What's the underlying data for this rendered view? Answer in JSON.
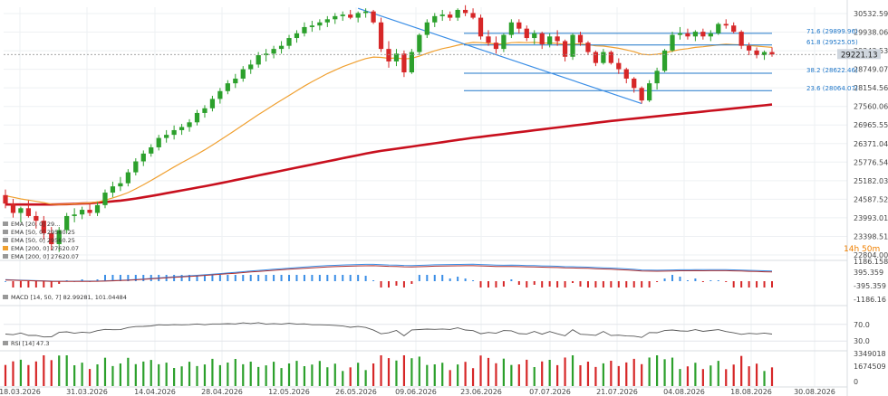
{
  "chart_data": {
    "type": "candlestick",
    "series_bull_color": "#2ca02c",
    "series_bear_color": "#d62728",
    "dates": [
      "18.03.2026",
      "31.03.2026",
      "14.04.2026",
      "28.04.2026",
      "12.05.2026",
      "26.05.2026",
      "09.06.2026",
      "23.06.2026",
      "07.07.2026",
      "21.07.2026",
      "04.08.2026",
      "18.08.2026",
      "30.08.2026"
    ],
    "price_axis": [
      "30532.59",
      "29938.06",
      "29343.53",
      "28749.07",
      "28154.56",
      "27560.06",
      "26965.55",
      "26371.04",
      "25776.54",
      "25182.03",
      "24587.52",
      "23993.01",
      "23398.51",
      "22804.00"
    ],
    "last_price": "29221.13",
    "last_price_value": 29221.13,
    "countdown": "14h 50m",
    "fibonacci": [
      {
        "label": "71.6 (29899.96)",
        "value": 29899.96
      },
      {
        "label": "61.8 (29525.05)",
        "value": 29525.05
      },
      {
        "label": "38.2 (28622.46)",
        "value": 28622.46
      },
      {
        "label": "23.6 (28064.07)",
        "value": 28064.07
      }
    ],
    "legend": [
      {
        "label": "EMA [20, 0] 29...",
        "color": "#888888"
      },
      {
        "label": "EMA [50, 0] 29560.25",
        "color": "#888888"
      },
      {
        "label": "EMA [50, 0] 29560.25",
        "color": "#888888"
      },
      {
        "label": "EMA [200, 0] 27620.07",
        "color": "#f0a030"
      },
      {
        "label": "EMA [200, 0] 27620.07",
        "color": "#888888"
      }
    ],
    "candles": [
      [
        24720,
        24900,
        24300,
        24450
      ],
      [
        24450,
        24600,
        24000,
        24150
      ],
      [
        24150,
        24350,
        23850,
        24300
      ],
      [
        24300,
        24550,
        24000,
        24050
      ],
      [
        24050,
        24200,
        23650,
        23900
      ],
      [
        23900,
        24050,
        23300,
        23500
      ],
      [
        23500,
        23700,
        22950,
        23150
      ],
      [
        23150,
        23700,
        22900,
        23600
      ],
      [
        23600,
        24150,
        23500,
        24050
      ],
      [
        24050,
        24300,
        23850,
        24100
      ],
      [
        24100,
        24350,
        23950,
        24250
      ],
      [
        24250,
        24450,
        24050,
        24150
      ],
      [
        24150,
        24500,
        24050,
        24400
      ],
      [
        24400,
        24900,
        24300,
        24800
      ],
      [
        24800,
        25150,
        24650,
        25000
      ],
      [
        25000,
        25300,
        24850,
        25100
      ],
      [
        25100,
        25550,
        25000,
        25450
      ],
      [
        25450,
        25900,
        25350,
        25800
      ],
      [
        25800,
        26150,
        25650,
        26050
      ],
      [
        26050,
        26350,
        25950,
        26250
      ],
      [
        26250,
        26650,
        26150,
        26550
      ],
      [
        26550,
        26800,
        26400,
        26650
      ],
      [
        26650,
        26950,
        26500,
        26800
      ],
      [
        26800,
        27000,
        26650,
        26900
      ],
      [
        26900,
        27150,
        26750,
        27050
      ],
      [
        27050,
        27450,
        26950,
        27350
      ],
      [
        27350,
        27600,
        27200,
        27500
      ],
      [
        27500,
        27900,
        27400,
        27800
      ],
      [
        27800,
        28150,
        27650,
        28050
      ],
      [
        28050,
        28400,
        27950,
        28300
      ],
      [
        28300,
        28600,
        28150,
        28450
      ],
      [
        28450,
        28850,
        28350,
        28750
      ],
      [
        28750,
        29050,
        28600,
        28900
      ],
      [
        28900,
        29300,
        28800,
        29200
      ],
      [
        29200,
        29400,
        29000,
        29250
      ],
      [
        29250,
        29500,
        29100,
        29400
      ],
      [
        29400,
        29650,
        29250,
        29500
      ],
      [
        29500,
        29850,
        29400,
        29750
      ],
      [
        29750,
        30000,
        29600,
        29900
      ],
      [
        29900,
        30250,
        29800,
        30100
      ],
      [
        30100,
        30300,
        29950,
        30150
      ],
      [
        30150,
        30350,
        30000,
        30250
      ],
      [
        30250,
        30450,
        30100,
        30350
      ],
      [
        30350,
        30550,
        30200,
        30450
      ],
      [
        30450,
        30600,
        30300,
        30500
      ],
      [
        30500,
        30650,
        30350,
        30400
      ],
      [
        30400,
        30600,
        30250,
        30550
      ],
      [
        30550,
        30700,
        30400,
        30600
      ],
      [
        30600,
        30650,
        30200,
        30250
      ],
      [
        30250,
        30400,
        29300,
        29400
      ],
      [
        29400,
        29650,
        28800,
        29000
      ],
      [
        29000,
        29400,
        28850,
        29250
      ],
      [
        29250,
        29350,
        28500,
        28650
      ],
      [
        28650,
        29400,
        28600,
        29300
      ],
      [
        29300,
        29900,
        29200,
        29850
      ],
      [
        29850,
        30350,
        29750,
        30250
      ],
      [
        30250,
        30550,
        30100,
        30450
      ],
      [
        30450,
        30650,
        30300,
        30500
      ],
      [
        30500,
        30600,
        30300,
        30400
      ],
      [
        30400,
        30700,
        30300,
        30650
      ],
      [
        30650,
        30800,
        30450,
        30550
      ],
      [
        30550,
        30700,
        30350,
        30400
      ],
      [
        30400,
        30500,
        29700,
        29800
      ],
      [
        29800,
        30000,
        29500,
        29600
      ],
      [
        29600,
        29800,
        29250,
        29400
      ],
      [
        29400,
        29900,
        29300,
        29850
      ],
      [
        29850,
        30350,
        29750,
        30250
      ],
      [
        30250,
        30350,
        29900,
        30050
      ],
      [
        30050,
        30150,
        29650,
        29750
      ],
      [
        29750,
        30000,
        29550,
        29900
      ],
      [
        29900,
        29950,
        29400,
        29550
      ],
      [
        29550,
        29900,
        29450,
        29800
      ],
      [
        29800,
        30000,
        29500,
        29650
      ],
      [
        29650,
        29700,
        29000,
        29150
      ],
      [
        29150,
        29900,
        29050,
        29850
      ],
      [
        29850,
        29950,
        29500,
        29600
      ],
      [
        29600,
        29650,
        29200,
        29300
      ],
      [
        29300,
        29350,
        28850,
        28950
      ],
      [
        28950,
        29400,
        28900,
        29300
      ],
      [
        29300,
        29350,
        28900,
        28950
      ],
      [
        28950,
        29100,
        28600,
        28750
      ],
      [
        28750,
        28800,
        28300,
        28450
      ],
      [
        28450,
        28500,
        28000,
        28150
      ],
      [
        28150,
        28200,
        27650,
        27750
      ],
      [
        27750,
        28400,
        27700,
        28300
      ],
      [
        28300,
        28800,
        28100,
        28700
      ],
      [
        28700,
        29400,
        28650,
        29350
      ],
      [
        29350,
        29950,
        29300,
        29850
      ],
      [
        29850,
        30100,
        29700,
        29900
      ],
      [
        29900,
        30050,
        29700,
        29800
      ],
      [
        29800,
        30000,
        29650,
        29950
      ],
      [
        29950,
        30050,
        29700,
        29800
      ],
      [
        29800,
        30000,
        29650,
        29900
      ],
      [
        29900,
        30250,
        29850,
        30200
      ],
      [
        30200,
        30350,
        30050,
        30150
      ],
      [
        30150,
        30250,
        29900,
        29950
      ],
      [
        29950,
        30000,
        29400,
        29500
      ],
      [
        29500,
        29600,
        29200,
        29350
      ],
      [
        29350,
        29450,
        29100,
        29200
      ],
      [
        29200,
        29350,
        29050,
        29300
      ],
      [
        29300,
        29450,
        29150,
        29221
      ]
    ],
    "ema_fast": [
      24700,
      24650,
      24600,
      24560,
      24520,
      24480,
      24430,
      24420,
      24430,
      24440,
      24460,
      24470,
      24500,
      24560,
      24630,
      24710,
      24800,
      24920,
      25050,
      25190,
      25330,
      25480,
      25620,
      25760,
      25890,
      26030,
      26170,
      26320,
      26480,
      26640,
      26800,
      26970,
      27130,
      27300,
      27450,
      27610,
      27760,
      27910,
      28060,
      28210,
      28350,
      28480,
      28610,
      28720,
      28830,
      28920,
      29010,
      29090,
      29140,
      29130,
      29100,
      29110,
      29080,
      29100,
      29170,
      29260,
      29340,
      29410,
      29460,
      29520,
      29570,
      29610,
      29600,
      29580,
      29560,
      29560,
      29600,
      29610,
      29600,
      29610,
      29590,
      29590,
      29580,
      29540,
      29560,
      29560,
      29540,
      29500,
      29490,
      29460,
      29420,
      29370,
      29310,
      29230,
      29210,
      29230,
      29270,
      29330,
      29380,
      29410,
      29450,
      29470,
      29500,
      29530,
      29550,
      29540,
      29530,
      29510,
      29490,
      29470,
      29450
    ],
    "ema_slow": [
      24420,
      24420,
      24420,
      24420,
      24420,
      24420,
      24420,
      24425,
      24430,
      24440,
      24450,
      24460,
      24480,
      24500,
      24520,
      24545,
      24575,
      24610,
      24650,
      24690,
      24735,
      24780,
      24825,
      24870,
      24915,
      24960,
      25005,
      25050,
      25100,
      25150,
      25200,
      25250,
      25300,
      25350,
      25400,
      25450,
      25500,
      25550,
      25600,
      25650,
      25700,
      25750,
      25800,
      25850,
      25900,
      25950,
      26000,
      26050,
      26095,
      26135,
      26170,
      26205,
      26240,
      26275,
      26310,
      26345,
      26380,
      26415,
      26450,
      26485,
      26520,
      26555,
      26585,
      26615,
      26645,
      26675,
      26705,
      26735,
      26765,
      26795,
      26825,
      26855,
      26885,
      26915,
      26945,
      26975,
      27005,
      27035,
      27065,
      27095,
      27120,
      27145,
      27170,
      27195,
      27220,
      27245,
      27270,
      27295,
      27320,
      27345,
      27370,
      27395,
      27420,
      27445,
      27470,
      27495,
      27520,
      27545,
      27570,
      27595,
      27620
    ],
    "macd": {
      "label": "MACD [14, 50, 7] 82.99281, 101.04484",
      "axis": [
        "1186.158",
        "395.359",
        "-395.359",
        "-1186.16"
      ]
    },
    "rsi": {
      "label": "RSI [14] 47.3",
      "axis": [
        "70.0",
        "30.0"
      ]
    },
    "volume": {
      "axis": [
        "3349018",
        "1674509",
        "0"
      ]
    }
  }
}
